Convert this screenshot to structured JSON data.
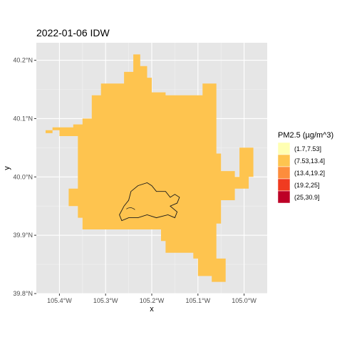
{
  "chart_data": {
    "type": "heatmap",
    "title": "2022-01-06 IDW",
    "xlabel": "x",
    "ylabel": "y",
    "xlim": [
      -105.45,
      -104.95
    ],
    "ylim": [
      39.8,
      40.23
    ],
    "x_ticks": [
      {
        "value": -105.4,
        "label": "105.4°W"
      },
      {
        "value": -105.3,
        "label": "105.3°W"
      },
      {
        "value": -105.2,
        "label": "105.2°W"
      },
      {
        "value": -105.1,
        "label": "105.1°W"
      },
      {
        "value": -105.0,
        "label": "105.0°W"
      }
    ],
    "y_ticks": [
      {
        "value": 39.8,
        "label": "39.8°N"
      },
      {
        "value": 39.9,
        "label": "39.9°N"
      },
      {
        "value": 40.0,
        "label": "40.0°N"
      },
      {
        "value": 40.1,
        "label": "40.1°N"
      },
      {
        "value": 40.2,
        "label": "40.2°N"
      }
    ],
    "grid": true,
    "panel_background": "#e6e6e6",
    "legend": {
      "title": "PM2.5 (µg/m^3)",
      "placement": "right",
      "entries": [
        {
          "label": "(1.7,7.53]",
          "color": "#ffffb2"
        },
        {
          "label": "(7.53,13.4]",
          "color": "#fec44f"
        },
        {
          "label": "(13.4,19.2]",
          "color": "#fd8d3c"
        },
        {
          "label": "(19.2,25]",
          "color": "#f03b20"
        },
        {
          "label": "(25,30.9]",
          "color": "#bd0026"
        }
      ]
    },
    "fill_class": "(7.53,13.4]",
    "fill_color": "#fec44f",
    "region_outline": [
      [
        -105.31,
        40.16
      ],
      [
        -105.26,
        40.16
      ],
      [
        -105.26,
        40.18
      ],
      [
        -105.24,
        40.18
      ],
      [
        -105.24,
        40.21
      ],
      [
        -105.225,
        40.21
      ],
      [
        -105.225,
        40.19
      ],
      [
        -105.21,
        40.19
      ],
      [
        -105.21,
        40.17
      ],
      [
        -105.2,
        40.17
      ],
      [
        -105.2,
        40.145
      ],
      [
        -105.17,
        40.145
      ],
      [
        -105.17,
        40.14
      ],
      [
        -105.09,
        40.14
      ],
      [
        -105.09,
        40.16
      ],
      [
        -105.06,
        40.16
      ],
      [
        -105.06,
        40.12
      ],
      [
        -105.06,
        40.04
      ],
      [
        -105.05,
        40.04
      ],
      [
        -105.05,
        40.01
      ],
      [
        -105.02,
        40.01
      ],
      [
        -105.02,
        40.0
      ],
      [
        -105.01,
        40.0
      ],
      [
        -105.01,
        40.05
      ],
      [
        -104.98,
        40.05
      ],
      [
        -104.98,
        40.0
      ],
      [
        -104.99,
        40.0
      ],
      [
        -104.99,
        39.98
      ],
      [
        -105.02,
        39.98
      ],
      [
        -105.02,
        39.96
      ],
      [
        -105.05,
        39.96
      ],
      [
        -105.05,
        39.92
      ],
      [
        -105.06,
        39.92
      ],
      [
        -105.06,
        39.86
      ],
      [
        -105.04,
        39.86
      ],
      [
        -105.04,
        39.85
      ],
      [
        -105.04,
        39.82
      ],
      [
        -105.07,
        39.82
      ],
      [
        -105.07,
        39.83
      ],
      [
        -105.1,
        39.83
      ],
      [
        -105.1,
        39.86
      ],
      [
        -105.11,
        39.86
      ],
      [
        -105.11,
        39.87
      ],
      [
        -105.17,
        39.87
      ],
      [
        -105.17,
        39.89
      ],
      [
        -105.18,
        39.89
      ],
      [
        -105.18,
        39.91
      ],
      [
        -105.25,
        39.91
      ],
      [
        -105.35,
        39.91
      ],
      [
        -105.35,
        39.93
      ],
      [
        -105.36,
        39.93
      ],
      [
        -105.36,
        39.95
      ],
      [
        -105.38,
        39.95
      ],
      [
        -105.38,
        39.98
      ],
      [
        -105.36,
        39.98
      ],
      [
        -105.36,
        40.07
      ],
      [
        -105.4,
        40.07
      ],
      [
        -105.4,
        40.08
      ],
      [
        -105.43,
        40.08
      ],
      [
        -105.43,
        40.075
      ],
      [
        -105.415,
        40.075
      ],
      [
        -105.415,
        40.085
      ],
      [
        -105.37,
        40.085
      ],
      [
        -105.37,
        40.09
      ],
      [
        -105.35,
        40.09
      ],
      [
        -105.35,
        40.1
      ],
      [
        -105.33,
        40.1
      ],
      [
        -105.33,
        40.14
      ],
      [
        -105.31,
        40.14
      ]
    ],
    "boundary_outline": [
      [
        -105.27,
        39.935
      ],
      [
        -105.26,
        39.95
      ],
      [
        -105.25,
        39.96
      ],
      [
        -105.245,
        39.975
      ],
      [
        -105.23,
        39.985
      ],
      [
        -105.21,
        39.99
      ],
      [
        -105.2,
        39.985
      ],
      [
        -105.19,
        39.975
      ],
      [
        -105.17,
        39.975
      ],
      [
        -105.16,
        39.965
      ],
      [
        -105.15,
        39.97
      ],
      [
        -105.14,
        39.965
      ],
      [
        -105.145,
        39.955
      ],
      [
        -105.16,
        39.95
      ],
      [
        -105.145,
        39.94
      ],
      [
        -105.15,
        39.93
      ],
      [
        -105.165,
        39.935
      ],
      [
        -105.19,
        39.93
      ],
      [
        -105.21,
        39.935
      ],
      [
        -105.23,
        39.93
      ],
      [
        -105.25,
        39.93
      ],
      [
        -105.265,
        39.925
      ],
      [
        -105.27,
        39.935
      ]
    ]
  }
}
